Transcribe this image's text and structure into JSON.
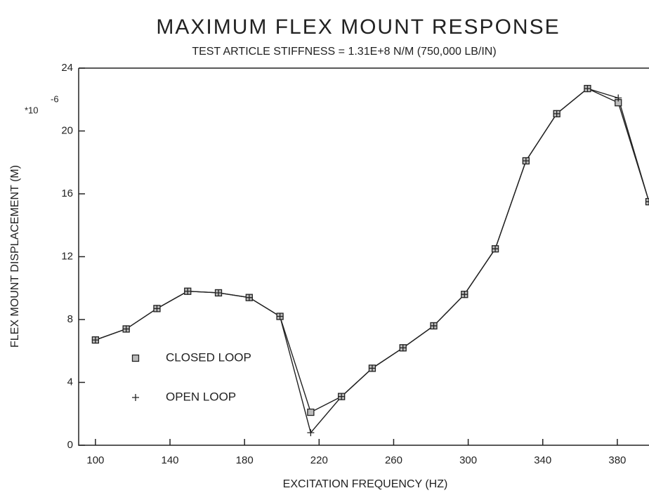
{
  "chart_data": {
    "type": "line",
    "title": "MAXIMUM FLEX MOUNT RESPONSE",
    "subtitle": "TEST ARTICLE STIFFNESS = 1.31E+8 N/M (750,000 LB/IN)",
    "x_label": "EXCITATION FREQUENCY (HZ)",
    "y_label": "FLEX MOUNT DISPLACEMENT (M)",
    "y_scale": {
      "base": "*10",
      "exponent": "-6"
    },
    "x": [
      100,
      116.5,
      133,
      149.5,
      166,
      182.5,
      199,
      215.5,
      232,
      248.5,
      265,
      281.5,
      298,
      314.5,
      331,
      347.5,
      364,
      380.5,
      397
    ],
    "series": [
      {
        "name": "CLOSED LOOP",
        "color": "#222222",
        "marker": "square",
        "values": [
          6.7,
          7.4,
          8.7,
          9.8,
          9.7,
          9.4,
          8.2,
          2.1,
          3.1,
          4.9,
          6.2,
          7.6,
          9.6,
          12.5,
          18.1,
          21.1,
          22.7,
          21.8,
          15.5
        ]
      },
      {
        "name": "OPEN LOOP",
        "color": "#222222",
        "marker": "plus",
        "values": [
          6.7,
          7.4,
          8.7,
          9.8,
          9.7,
          9.4,
          8.2,
          0.8,
          3.1,
          4.9,
          6.2,
          7.6,
          9.6,
          12.5,
          18.1,
          21.1,
          22.7,
          22.1,
          15.5
        ]
      }
    ],
    "xlim": [
      91,
      397
    ],
    "xticks": [
      100,
      140,
      180,
      220,
      260,
      300,
      340,
      380
    ],
    "ylim": [
      0,
      24
    ],
    "yticks": [
      0,
      4,
      8,
      12,
      16,
      20,
      24
    ],
    "grid": false
  }
}
